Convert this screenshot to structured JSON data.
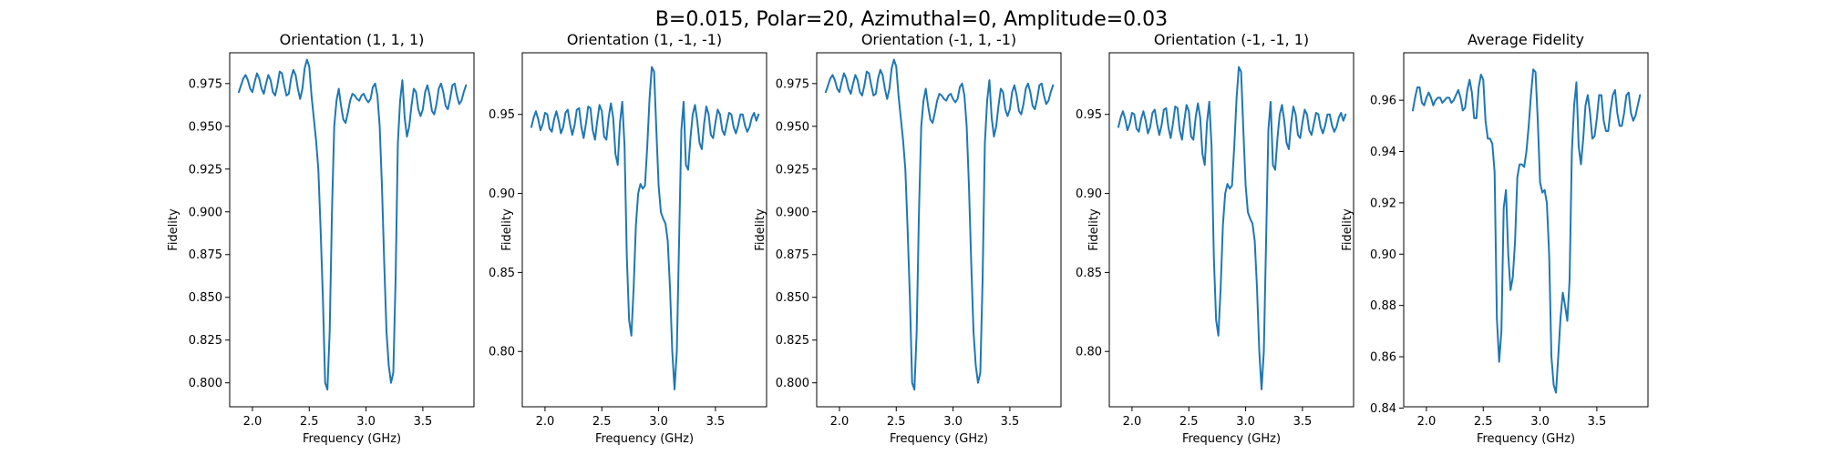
{
  "figure": {
    "suptitle": "B=0.015, Polar=20, Azimuthal=0, Amplitude=0.03"
  },
  "colors": {
    "line": "#1f77b4"
  },
  "chart_data": [
    {
      "type": "line",
      "title": "Orientation (1, 1, 1)",
      "xlabel": "Frequency (GHz)",
      "ylabel": "Fidelity",
      "xlim": [
        1.8,
        3.95
      ],
      "ylim": [
        0.786,
        0.993
      ],
      "xticks": [
        "2.0",
        "2.5",
        "3.0",
        "3.5"
      ],
      "yticks": [
        "0.800",
        "0.825",
        "0.850",
        "0.875",
        "0.900",
        "0.925",
        "0.950",
        "0.975"
      ],
      "x": [
        1.88,
        1.9,
        1.92,
        1.94,
        1.96,
        1.98,
        2.0,
        2.02,
        2.04,
        2.06,
        2.08,
        2.1,
        2.12,
        2.14,
        2.16,
        2.18,
        2.2,
        2.22,
        2.24,
        2.26,
        2.28,
        2.3,
        2.32,
        2.34,
        2.36,
        2.38,
        2.4,
        2.42,
        2.44,
        2.46,
        2.48,
        2.5,
        2.52,
        2.54,
        2.56,
        2.58,
        2.6,
        2.62,
        2.64,
        2.66,
        2.68,
        2.7,
        2.72,
        2.74,
        2.76,
        2.78,
        2.8,
        2.82,
        2.84,
        2.86,
        2.88,
        2.9,
        2.92,
        2.94,
        2.96,
        2.98,
        3.0,
        3.02,
        3.04,
        3.06,
        3.08,
        3.1,
        3.12,
        3.14,
        3.16,
        3.18,
        3.2,
        3.22,
        3.24,
        3.26,
        3.28,
        3.3,
        3.32,
        3.34,
        3.36,
        3.38,
        3.4,
        3.42,
        3.44,
        3.46,
        3.48,
        3.5,
        3.52,
        3.54,
        3.56,
        3.58,
        3.6,
        3.62,
        3.64,
        3.66,
        3.68,
        3.7,
        3.72,
        3.74,
        3.76,
        3.78,
        3.8,
        3.82,
        3.84,
        3.86,
        3.88
      ],
      "y": [
        0.97,
        0.974,
        0.978,
        0.98,
        0.977,
        0.972,
        0.97,
        0.976,
        0.981,
        0.978,
        0.972,
        0.969,
        0.975,
        0.98,
        0.977,
        0.97,
        0.968,
        0.974,
        0.982,
        0.981,
        0.974,
        0.968,
        0.969,
        0.978,
        0.983,
        0.98,
        0.972,
        0.966,
        0.972,
        0.984,
        0.989,
        0.985,
        0.968,
        0.955,
        0.942,
        0.925,
        0.89,
        0.85,
        0.8,
        0.796,
        0.83,
        0.9,
        0.95,
        0.965,
        0.972,
        0.962,
        0.954,
        0.952,
        0.958,
        0.965,
        0.969,
        0.968,
        0.966,
        0.965,
        0.968,
        0.969,
        0.966,
        0.964,
        0.966,
        0.973,
        0.975,
        0.968,
        0.95,
        0.915,
        0.87,
        0.83,
        0.81,
        0.8,
        0.806,
        0.86,
        0.94,
        0.965,
        0.977,
        0.955,
        0.944,
        0.95,
        0.962,
        0.972,
        0.97,
        0.96,
        0.956,
        0.96,
        0.97,
        0.974,
        0.968,
        0.959,
        0.957,
        0.963,
        0.972,
        0.975,
        0.97,
        0.962,
        0.96,
        0.966,
        0.974,
        0.975,
        0.968,
        0.963,
        0.965,
        0.97,
        0.974
      ]
    },
    {
      "type": "line",
      "title": "Orientation (1, -1, -1)",
      "xlabel": "Frequency (GHz)",
      "ylabel": "Fidelity",
      "xlim": [
        1.8,
        3.95
      ],
      "ylim": [
        0.765,
        0.989
      ],
      "xticks": [
        "2.0",
        "2.5",
        "3.0",
        "3.5"
      ],
      "yticks": [
        "0.80",
        "0.85",
        "0.90",
        "0.95"
      ],
      "x": [
        1.88,
        1.9,
        1.92,
        1.94,
        1.96,
        1.98,
        2.0,
        2.02,
        2.04,
        2.06,
        2.08,
        2.1,
        2.12,
        2.14,
        2.16,
        2.18,
        2.2,
        2.22,
        2.24,
        2.26,
        2.28,
        2.3,
        2.32,
        2.34,
        2.36,
        2.38,
        2.4,
        2.42,
        2.44,
        2.46,
        2.48,
        2.5,
        2.52,
        2.54,
        2.56,
        2.58,
        2.6,
        2.62,
        2.64,
        2.66,
        2.68,
        2.7,
        2.72,
        2.74,
        2.76,
        2.78,
        2.8,
        2.82,
        2.84,
        2.86,
        2.88,
        2.9,
        2.92,
        2.94,
        2.96,
        2.98,
        3.0,
        3.02,
        3.04,
        3.06,
        3.08,
        3.1,
        3.12,
        3.14,
        3.16,
        3.18,
        3.2,
        3.22,
        3.24,
        3.26,
        3.28,
        3.3,
        3.32,
        3.34,
        3.36,
        3.38,
        3.4,
        3.42,
        3.44,
        3.46,
        3.48,
        3.5,
        3.52,
        3.54,
        3.56,
        3.58,
        3.6,
        3.62,
        3.64,
        3.66,
        3.68,
        3.7,
        3.72,
        3.74,
        3.76,
        3.78,
        3.8,
        3.82,
        3.84,
        3.86,
        3.88
      ],
      "y": [
        0.942,
        0.948,
        0.952,
        0.947,
        0.94,
        0.944,
        0.951,
        0.95,
        0.941,
        0.939,
        0.947,
        0.952,
        0.946,
        0.938,
        0.942,
        0.951,
        0.953,
        0.944,
        0.937,
        0.943,
        0.953,
        0.954,
        0.942,
        0.935,
        0.944,
        0.955,
        0.954,
        0.94,
        0.934,
        0.946,
        0.956,
        0.952,
        0.936,
        0.934,
        0.948,
        0.957,
        0.948,
        0.925,
        0.918,
        0.945,
        0.958,
        0.93,
        0.86,
        0.82,
        0.81,
        0.84,
        0.88,
        0.9,
        0.906,
        0.903,
        0.905,
        0.93,
        0.96,
        0.98,
        0.977,
        0.94,
        0.905,
        0.888,
        0.884,
        0.881,
        0.87,
        0.84,
        0.8,
        0.776,
        0.8,
        0.87,
        0.94,
        0.958,
        0.918,
        0.915,
        0.935,
        0.95,
        0.956,
        0.946,
        0.932,
        0.928,
        0.944,
        0.955,
        0.95,
        0.937,
        0.935,
        0.945,
        0.953,
        0.95,
        0.94,
        0.937,
        0.944,
        0.951,
        0.95,
        0.942,
        0.938,
        0.943,
        0.95,
        0.95,
        0.943,
        0.939,
        0.942,
        0.948,
        0.951,
        0.946,
        0.95
      ]
    },
    {
      "type": "line",
      "title": "Orientation (-1, 1, -1)",
      "xlabel": "Frequency (GHz)",
      "ylabel": "Fidelity",
      "xlim": [
        1.8,
        3.95
      ],
      "ylim": [
        0.786,
        0.993
      ],
      "xticks": [
        "2.0",
        "2.5",
        "3.0",
        "3.5"
      ],
      "yticks": [
        "0.800",
        "0.825",
        "0.850",
        "0.875",
        "0.900",
        "0.925",
        "0.950",
        "0.975"
      ],
      "x": [
        1.88,
        1.9,
        1.92,
        1.94,
        1.96,
        1.98,
        2.0,
        2.02,
        2.04,
        2.06,
        2.08,
        2.1,
        2.12,
        2.14,
        2.16,
        2.18,
        2.2,
        2.22,
        2.24,
        2.26,
        2.28,
        2.3,
        2.32,
        2.34,
        2.36,
        2.38,
        2.4,
        2.42,
        2.44,
        2.46,
        2.48,
        2.5,
        2.52,
        2.54,
        2.56,
        2.58,
        2.6,
        2.62,
        2.64,
        2.66,
        2.68,
        2.7,
        2.72,
        2.74,
        2.76,
        2.78,
        2.8,
        2.82,
        2.84,
        2.86,
        2.88,
        2.9,
        2.92,
        2.94,
        2.96,
        2.98,
        3.0,
        3.02,
        3.04,
        3.06,
        3.08,
        3.1,
        3.12,
        3.14,
        3.16,
        3.18,
        3.2,
        3.22,
        3.24,
        3.26,
        3.28,
        3.3,
        3.32,
        3.34,
        3.36,
        3.38,
        3.4,
        3.42,
        3.44,
        3.46,
        3.48,
        3.5,
        3.52,
        3.54,
        3.56,
        3.58,
        3.6,
        3.62,
        3.64,
        3.66,
        3.68,
        3.7,
        3.72,
        3.74,
        3.76,
        3.78,
        3.8,
        3.82,
        3.84,
        3.86,
        3.88
      ],
      "y": [
        0.97,
        0.974,
        0.978,
        0.98,
        0.977,
        0.972,
        0.97,
        0.976,
        0.981,
        0.978,
        0.972,
        0.969,
        0.975,
        0.98,
        0.977,
        0.97,
        0.968,
        0.974,
        0.982,
        0.981,
        0.974,
        0.968,
        0.969,
        0.978,
        0.983,
        0.98,
        0.972,
        0.966,
        0.972,
        0.984,
        0.989,
        0.985,
        0.968,
        0.955,
        0.942,
        0.925,
        0.89,
        0.85,
        0.8,
        0.796,
        0.83,
        0.9,
        0.95,
        0.965,
        0.972,
        0.962,
        0.954,
        0.952,
        0.958,
        0.965,
        0.969,
        0.968,
        0.966,
        0.965,
        0.968,
        0.969,
        0.966,
        0.964,
        0.966,
        0.973,
        0.975,
        0.968,
        0.95,
        0.915,
        0.87,
        0.83,
        0.81,
        0.8,
        0.806,
        0.86,
        0.94,
        0.965,
        0.977,
        0.955,
        0.944,
        0.95,
        0.962,
        0.972,
        0.97,
        0.96,
        0.956,
        0.96,
        0.97,
        0.974,
        0.968,
        0.959,
        0.957,
        0.963,
        0.972,
        0.975,
        0.97,
        0.962,
        0.96,
        0.966,
        0.974,
        0.975,
        0.968,
        0.963,
        0.965,
        0.97,
        0.974
      ]
    },
    {
      "type": "line",
      "title": "Orientation (-1, -1, 1)",
      "xlabel": "Frequency (GHz)",
      "ylabel": "Fidelity",
      "xlim": [
        1.8,
        3.95
      ],
      "ylim": [
        0.765,
        0.989
      ],
      "xticks": [
        "2.0",
        "2.5",
        "3.0",
        "3.5"
      ],
      "yticks": [
        "0.80",
        "0.85",
        "0.90",
        "0.95"
      ],
      "x": [
        1.88,
        1.9,
        1.92,
        1.94,
        1.96,
        1.98,
        2.0,
        2.02,
        2.04,
        2.06,
        2.08,
        2.1,
        2.12,
        2.14,
        2.16,
        2.18,
        2.2,
        2.22,
        2.24,
        2.26,
        2.28,
        2.3,
        2.32,
        2.34,
        2.36,
        2.38,
        2.4,
        2.42,
        2.44,
        2.46,
        2.48,
        2.5,
        2.52,
        2.54,
        2.56,
        2.58,
        2.6,
        2.62,
        2.64,
        2.66,
        2.68,
        2.7,
        2.72,
        2.74,
        2.76,
        2.78,
        2.8,
        2.82,
        2.84,
        2.86,
        2.88,
        2.9,
        2.92,
        2.94,
        2.96,
        2.98,
        3.0,
        3.02,
        3.04,
        3.06,
        3.08,
        3.1,
        3.12,
        3.14,
        3.16,
        3.18,
        3.2,
        3.22,
        3.24,
        3.26,
        3.28,
        3.3,
        3.32,
        3.34,
        3.36,
        3.38,
        3.4,
        3.42,
        3.44,
        3.46,
        3.48,
        3.5,
        3.52,
        3.54,
        3.56,
        3.58,
        3.6,
        3.62,
        3.64,
        3.66,
        3.68,
        3.7,
        3.72,
        3.74,
        3.76,
        3.78,
        3.8,
        3.82,
        3.84,
        3.86,
        3.88
      ],
      "y": [
        0.942,
        0.948,
        0.952,
        0.947,
        0.94,
        0.944,
        0.951,
        0.95,
        0.941,
        0.939,
        0.947,
        0.952,
        0.946,
        0.938,
        0.942,
        0.951,
        0.953,
        0.944,
        0.937,
        0.943,
        0.953,
        0.954,
        0.942,
        0.935,
        0.944,
        0.955,
        0.954,
        0.94,
        0.934,
        0.946,
        0.956,
        0.952,
        0.936,
        0.934,
        0.948,
        0.957,
        0.948,
        0.925,
        0.918,
        0.945,
        0.958,
        0.93,
        0.86,
        0.82,
        0.81,
        0.84,
        0.88,
        0.9,
        0.906,
        0.903,
        0.905,
        0.93,
        0.96,
        0.98,
        0.977,
        0.94,
        0.905,
        0.888,
        0.884,
        0.881,
        0.87,
        0.84,
        0.8,
        0.776,
        0.8,
        0.87,
        0.94,
        0.958,
        0.918,
        0.915,
        0.935,
        0.95,
        0.956,
        0.946,
        0.932,
        0.928,
        0.944,
        0.955,
        0.95,
        0.937,
        0.935,
        0.945,
        0.953,
        0.95,
        0.94,
        0.937,
        0.944,
        0.951,
        0.95,
        0.942,
        0.938,
        0.943,
        0.95,
        0.95,
        0.943,
        0.939,
        0.942,
        0.948,
        0.951,
        0.946,
        0.95
      ]
    },
    {
      "type": "line",
      "title": "Average Fidelity",
      "xlabel": "Frequency (GHz)",
      "ylabel": "Fidelity",
      "xlim": [
        1.8,
        3.95
      ],
      "ylim": [
        0.8405,
        0.9785
      ],
      "xticks": [
        "2.0",
        "2.5",
        "3.0",
        "3.5"
      ],
      "yticks": [
        "0.84",
        "0.86",
        "0.88",
        "0.90",
        "0.92",
        "0.94",
        "0.96"
      ],
      "x": [
        1.88,
        1.9,
        1.92,
        1.94,
        1.96,
        1.98,
        2.0,
        2.02,
        2.04,
        2.06,
        2.08,
        2.1,
        2.12,
        2.14,
        2.16,
        2.18,
        2.2,
        2.22,
        2.24,
        2.26,
        2.28,
        2.3,
        2.32,
        2.34,
        2.36,
        2.38,
        2.4,
        2.42,
        2.44,
        2.46,
        2.48,
        2.5,
        2.52,
        2.54,
        2.56,
        2.58,
        2.6,
        2.62,
        2.64,
        2.66,
        2.68,
        2.7,
        2.72,
        2.74,
        2.76,
        2.78,
        2.8,
        2.82,
        2.84,
        2.86,
        2.88,
        2.9,
        2.92,
        2.94,
        2.96,
        2.98,
        3.0,
        3.02,
        3.04,
        3.06,
        3.08,
        3.1,
        3.12,
        3.14,
        3.16,
        3.18,
        3.2,
        3.22,
        3.24,
        3.26,
        3.28,
        3.3,
        3.32,
        3.34,
        3.36,
        3.38,
        3.4,
        3.42,
        3.44,
        3.46,
        3.48,
        3.5,
        3.52,
        3.54,
        3.56,
        3.58,
        3.6,
        3.62,
        3.64,
        3.66,
        3.68,
        3.7,
        3.72,
        3.74,
        3.76,
        3.78,
        3.8,
        3.82,
        3.84,
        3.86,
        3.88
      ],
      "y": [
        0.956,
        0.961,
        0.965,
        0.965,
        0.959,
        0.958,
        0.961,
        0.963,
        0.961,
        0.958,
        0.96,
        0.961,
        0.961,
        0.959,
        0.96,
        0.961,
        0.961,
        0.959,
        0.96,
        0.962,
        0.964,
        0.961,
        0.956,
        0.957,
        0.964,
        0.968,
        0.963,
        0.953,
        0.953,
        0.965,
        0.97,
        0.968,
        0.952,
        0.945,
        0.945,
        0.943,
        0.932,
        0.875,
        0.858,
        0.87,
        0.918,
        0.925,
        0.9,
        0.886,
        0.891,
        0.905,
        0.93,
        0.935,
        0.935,
        0.934,
        0.94,
        0.95,
        0.962,
        0.972,
        0.971,
        0.952,
        0.928,
        0.924,
        0.925,
        0.92,
        0.9,
        0.86,
        0.849,
        0.846,
        0.86,
        0.875,
        0.885,
        0.88,
        0.874,
        0.89,
        0.94,
        0.958,
        0.967,
        0.942,
        0.935,
        0.945,
        0.958,
        0.962,
        0.955,
        0.945,
        0.946,
        0.953,
        0.962,
        0.962,
        0.952,
        0.948,
        0.948,
        0.956,
        0.962,
        0.964,
        0.955,
        0.95,
        0.95,
        0.955,
        0.962,
        0.963,
        0.955,
        0.952,
        0.954,
        0.958,
        0.962
      ]
    }
  ]
}
